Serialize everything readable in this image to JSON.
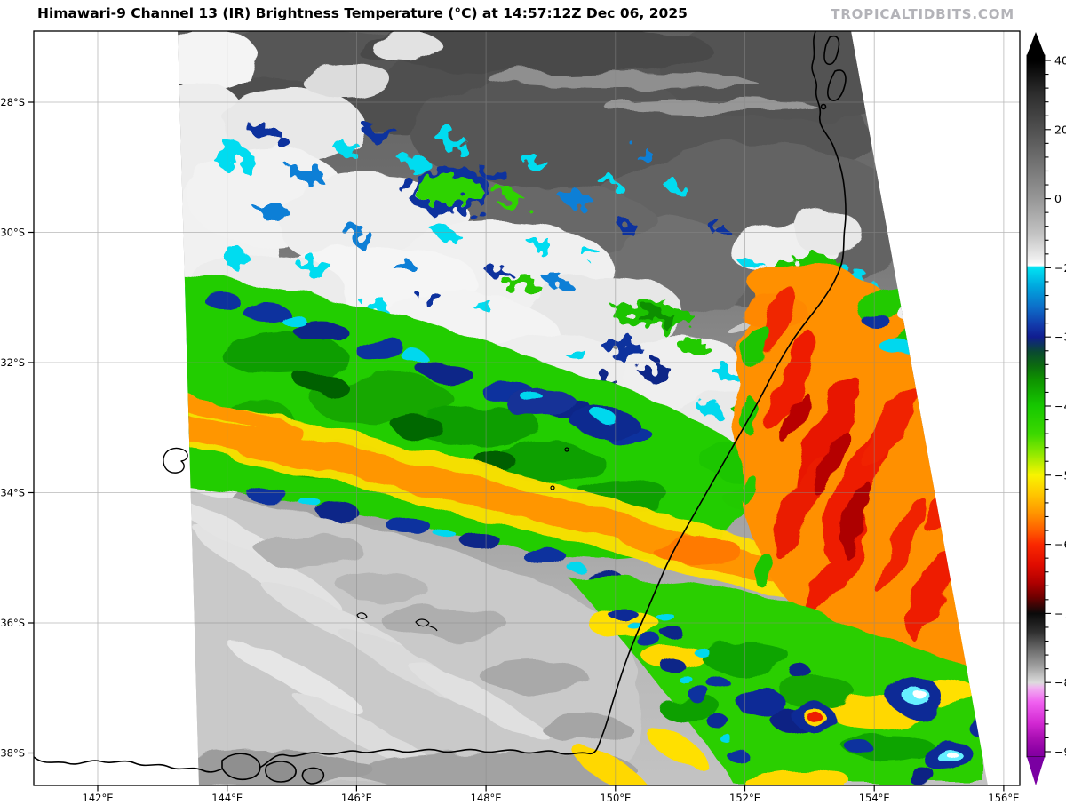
{
  "header": {
    "title": "Himawari-9 Channel 13 (IR) Brightness Temperature (°C) at 14:57:12Z Dec 06, 2025",
    "watermark": "TROPICALTIDBITS.COM"
  },
  "map": {
    "y_axis": {
      "labels": [
        "28°S",
        "30°S",
        "32°S",
        "34°S",
        "36°S",
        "38°S"
      ]
    },
    "x_axis": {
      "labels": [
        "142°E",
        "144°E",
        "146°E",
        "148°E",
        "150°E",
        "152°E",
        "154°E",
        "156°E"
      ]
    }
  },
  "colorbar": {
    "tick_labels": [
      "40",
      "20",
      "0",
      "−20",
      "−30",
      "−40",
      "−50",
      "−60",
      "−70",
      "−80",
      "−90"
    ],
    "scale_stops": [
      {
        "value": 40,
        "color": "#000000"
      },
      {
        "value": 20,
        "color": "#505050"
      },
      {
        "value": 0,
        "color": "#979797"
      },
      {
        "value": -20,
        "color": "#00e2f2"
      },
      {
        "value": -30,
        "color": "#10259b"
      },
      {
        "value": -40,
        "color": "#16c800"
      },
      {
        "value": -50,
        "color": "#f8f400"
      },
      {
        "value": -60,
        "color": "#fa2800"
      },
      {
        "value": -70,
        "color": "#0a0a0a"
      },
      {
        "value": -80,
        "color": "#dcdcdc"
      },
      {
        "value": -90,
        "color": "#8a00a4"
      }
    ]
  },
  "figure": {
    "background": "#ffffff",
    "frame_color": "#000000",
    "grid_color": "#8a8a8a",
    "coast_color": "#000000"
  }
}
